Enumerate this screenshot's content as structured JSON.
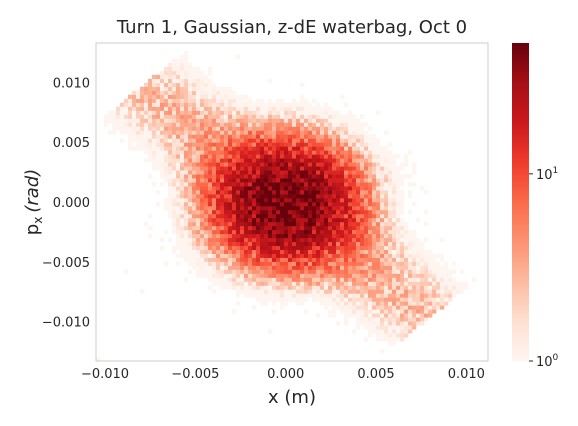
{
  "chart_data": {
    "type": "heatmap",
    "title": "Turn 1, Gaussian, z-dE waterbag, Oct 0",
    "xlabel": "x (m)",
    "ylabel_main": "p",
    "ylabel_sub": "x",
    "ylabel_unit": "(rad)",
    "xlim": [
      -0.0105,
      0.0112
    ],
    "ylim": [
      -0.0133,
      0.0133
    ],
    "xticks": [
      -0.01,
      -0.005,
      0.0,
      0.005,
      0.01
    ],
    "xtick_labels": [
      "−0.010",
      "−0.005",
      "0.000",
      "0.005",
      "0.010"
    ],
    "yticks": [
      0.01,
      0.005,
      0.0,
      -0.005,
      -0.01
    ],
    "ytick_labels": [
      "0.010",
      "0.005",
      "0.000",
      "−0.005",
      "−0.010"
    ],
    "colorbar": {
      "scale": "log",
      "colormap": "Reds",
      "range": [
        1,
        50
      ],
      "ticks": [
        {
          "base": "10",
          "exp": "1",
          "value": 10
        },
        {
          "base": "10",
          "exp": "0",
          "value": 1
        }
      ]
    },
    "distribution": {
      "components": [
        {
          "kind": "core",
          "center": [
            0.0,
            0.0
          ],
          "sigma_x": 0.0022,
          "sigma_y": 0.0028,
          "peak_count": 48
        },
        {
          "kind": "correlated_halo",
          "correlation": -0.85,
          "extent_x": [
            -0.0105,
            0.011
          ],
          "extent_y": [
            -0.013,
            0.013
          ],
          "peak_count": 4
        }
      ]
    },
    "grid": false
  }
}
